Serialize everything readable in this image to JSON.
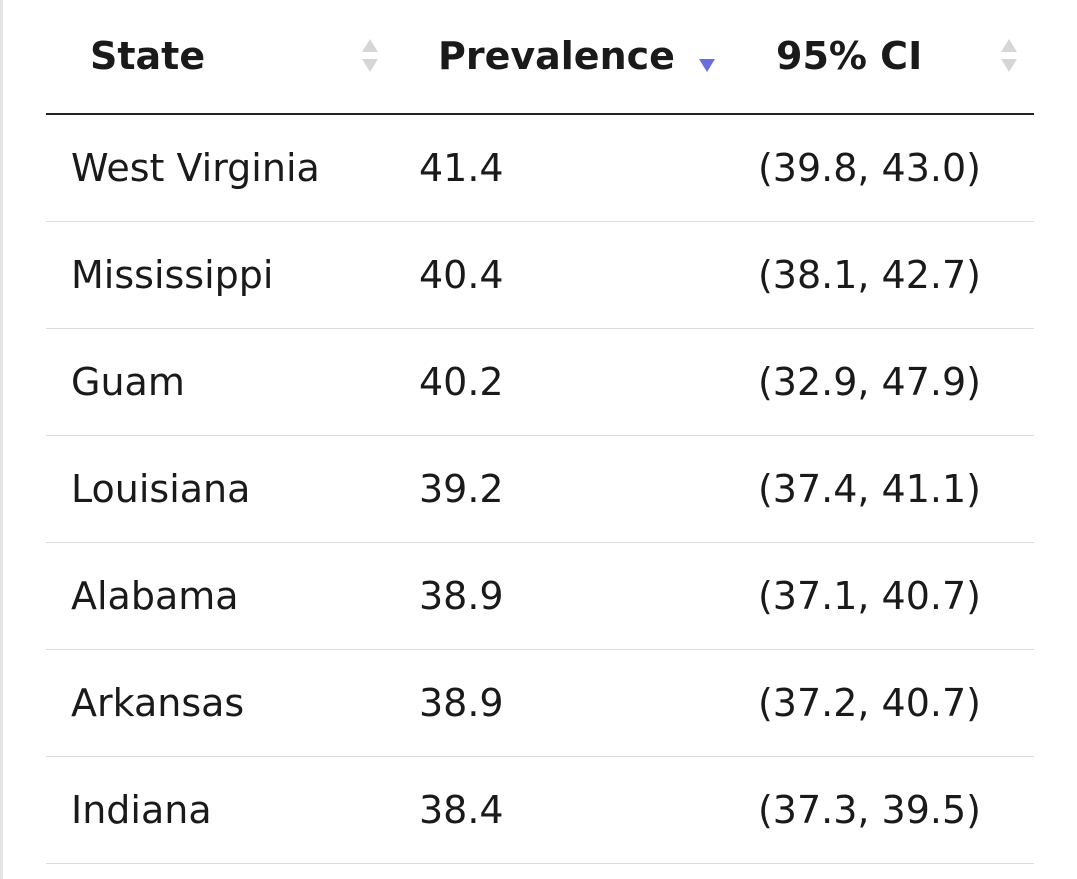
{
  "table": {
    "headers": {
      "state": "State",
      "prevalence": "Prevalence",
      "ci": "95% CI"
    },
    "sort": {
      "column": "prevalence",
      "direction": "descending",
      "active_color": "#6b6fdc",
      "inactive_color": "#d6d6d6"
    },
    "rows": [
      {
        "state": "West Virginia",
        "prevalence": "41.4",
        "ci": "(39.8, 43.0)"
      },
      {
        "state": "Mississippi",
        "prevalence": "40.4",
        "ci": "(38.1, 42.7)"
      },
      {
        "state": "Guam",
        "prevalence": "40.2",
        "ci": "(32.9, 47.9)"
      },
      {
        "state": "Louisiana",
        "prevalence": "39.2",
        "ci": "(37.4, 41.1)"
      },
      {
        "state": "Alabama",
        "prevalence": "38.9",
        "ci": "(37.1, 40.7)"
      },
      {
        "state": "Arkansas",
        "prevalence": "38.9",
        "ci": "(37.2, 40.7)"
      },
      {
        "state": "Indiana",
        "prevalence": "38.4",
        "ci": "(37.3, 39.5)"
      }
    ]
  }
}
